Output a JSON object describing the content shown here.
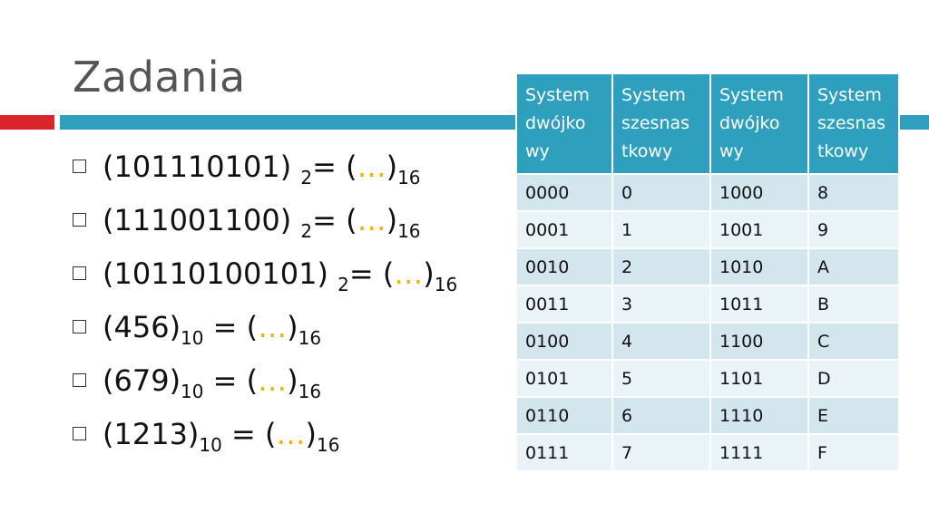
{
  "title": "Zadania",
  "colors": {
    "accent_red": "#d9262b",
    "accent_teal": "#2f9fbe",
    "ellipsis": "#f0b400"
  },
  "tasks": [
    {
      "left": "(101110101) ",
      "base_in": "2",
      "mid": "= (",
      "dots": "…",
      "close": ")",
      "base_out": "16"
    },
    {
      "left": "(111001100) ",
      "base_in": "2",
      "mid": "= (",
      "dots": "…",
      "close": ")",
      "base_out": "16"
    },
    {
      "left": "(10110100101) ",
      "base_in": "2",
      "mid": "= (",
      "dots": "…",
      "close": ")",
      "base_out": "16"
    },
    {
      "left": "(456)",
      "base_in": "10",
      "mid": " = (",
      "dots": "…",
      "close": ")",
      "base_out": "16"
    },
    {
      "left": "(679)",
      "base_in": "10",
      "mid": " = (",
      "dots": "…",
      "close": ")",
      "base_out": "16"
    },
    {
      "left": "(1213)",
      "base_in": "10",
      "mid": " = (",
      "dots": "…",
      "close": ")",
      "base_out": "16"
    }
  ],
  "table": {
    "headers": [
      "System\ndwójko\nwy",
      "System\nszesnas\ntkowy",
      "System\ndwójko\nwy",
      "System\nszesnas\ntkowy"
    ],
    "rows": [
      [
        "0000",
        "0",
        "1000",
        "8"
      ],
      [
        "0001",
        "1",
        "1001",
        "9"
      ],
      [
        "0010",
        "2",
        "1010",
        "A"
      ],
      [
        "0011",
        "3",
        "1011",
        "B"
      ],
      [
        "0100",
        "4",
        "1100",
        "C"
      ],
      [
        "0101",
        "5",
        "1101",
        "D"
      ],
      [
        "0110",
        "6",
        "1110",
        "E"
      ],
      [
        "0111",
        "7",
        "1111",
        "F"
      ]
    ]
  }
}
